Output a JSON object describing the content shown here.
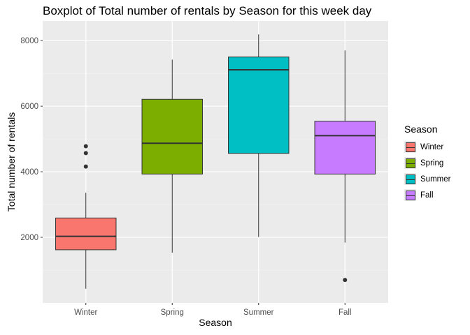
{
  "chart_data": {
    "type": "boxplot",
    "title": "Boxplot of Total number of rentals by Season for this week day",
    "xlabel": "Season",
    "ylabel": "Total number of rentals",
    "ylim": [
      0,
      8600
    ],
    "yticks": [
      2000,
      4000,
      6000,
      8000
    ],
    "grid": true,
    "legend": {
      "title": "Season",
      "position": "right"
    },
    "categories": [
      "Winter",
      "Spring",
      "Summer",
      "Fall"
    ],
    "series": [
      {
        "name": "Winter",
        "color": "#F8766D",
        "min": 431,
        "q1": 1620,
        "median": 2030,
        "q3": 2590,
        "max": 3360,
        "outliers": [
          4160,
          4570,
          4780
        ]
      },
      {
        "name": "Spring",
        "color": "#7CAE00",
        "min": 1530,
        "q1": 3930,
        "median": 4870,
        "q3": 6210,
        "max": 7420,
        "outliers": []
      },
      {
        "name": "Summer",
        "color": "#00BFC4",
        "min": 2010,
        "q1": 4560,
        "median": 7110,
        "q3": 7500,
        "max": 8190,
        "outliers": []
      },
      {
        "name": "Fall",
        "color": "#C77CFF",
        "min": 1840,
        "q1": 3930,
        "median": 5100,
        "q3": 5540,
        "max": 7700,
        "outliers": [
          700
        ]
      }
    ]
  }
}
